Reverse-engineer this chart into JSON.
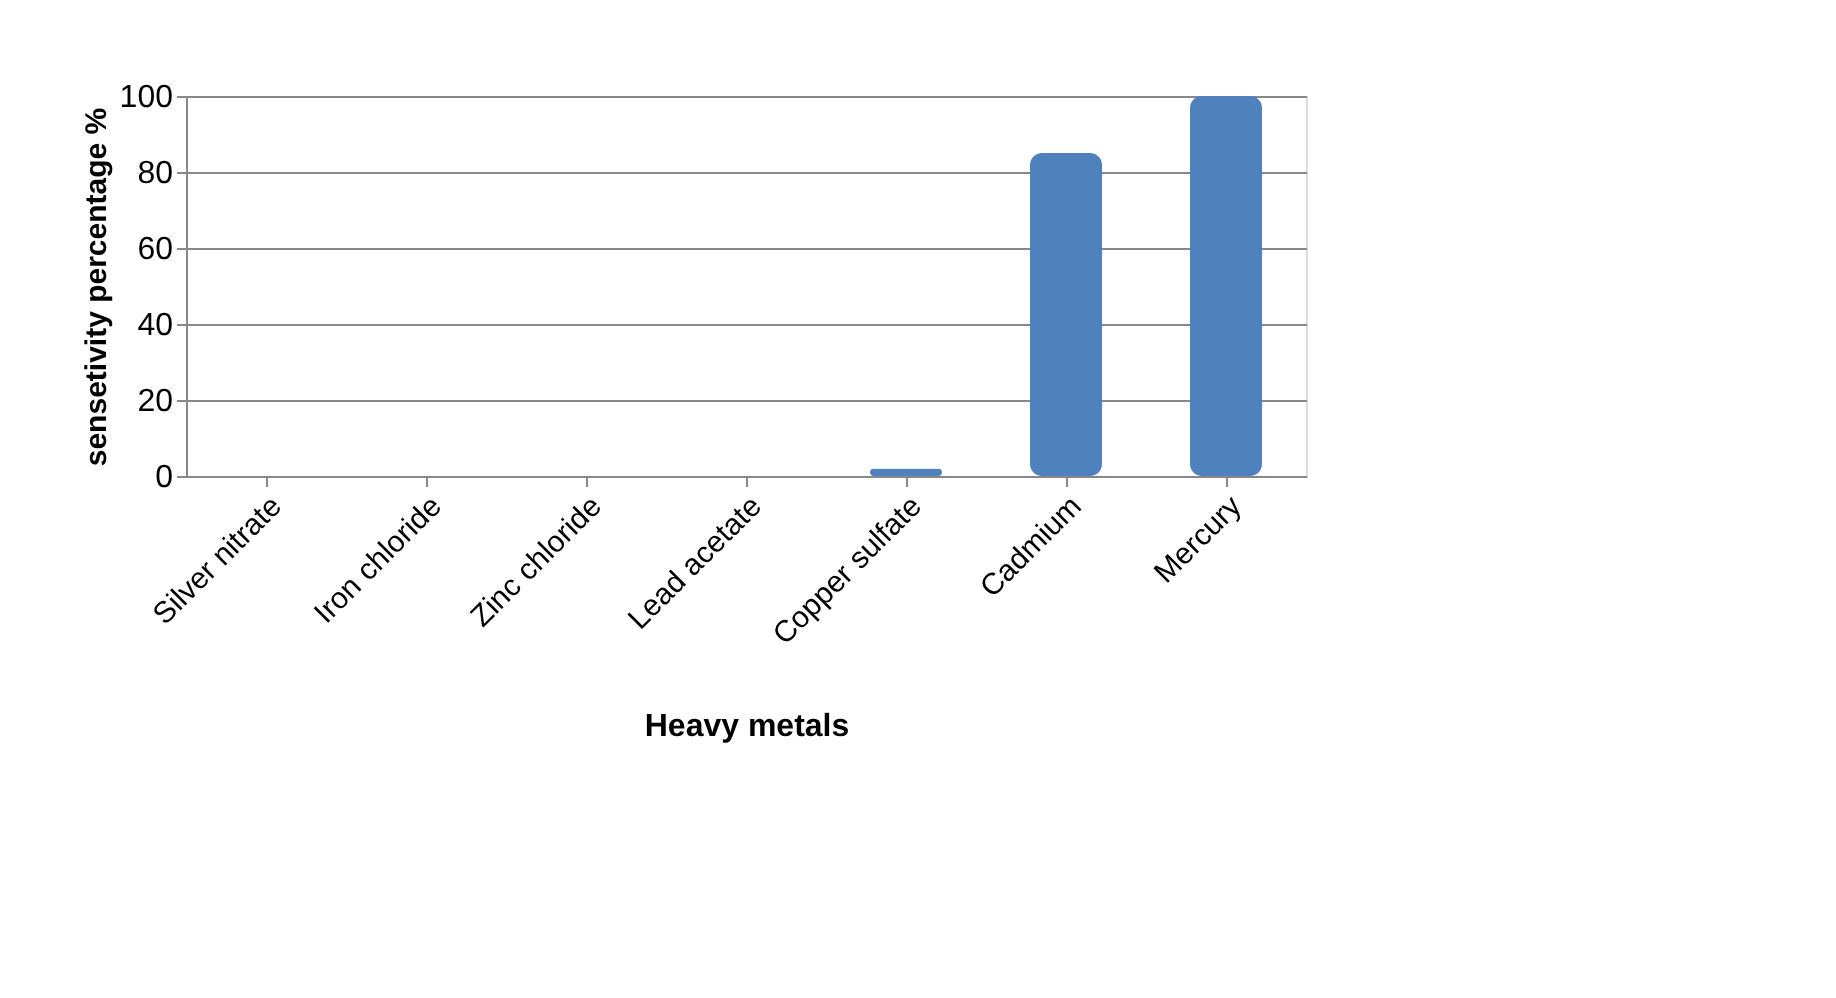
{
  "chart_data": {
    "type": "bar",
    "xlabel": "Heavy metals",
    "ylabel": "sensetivity percentage %",
    "categories": [
      "Silver nitrate",
      "Iron chloride",
      "Zinc chloride",
      "Lead acetate",
      "Copper sulfate",
      "Cadmium",
      "Mercury"
    ],
    "values": [
      0,
      0,
      0,
      0,
      2,
      85,
      100
    ],
    "color": "#4f81bd",
    "ylim": [
      0,
      100
    ],
    "yticks": [
      0,
      20,
      40,
      60,
      80,
      100
    ],
    "grid": "y"
  }
}
